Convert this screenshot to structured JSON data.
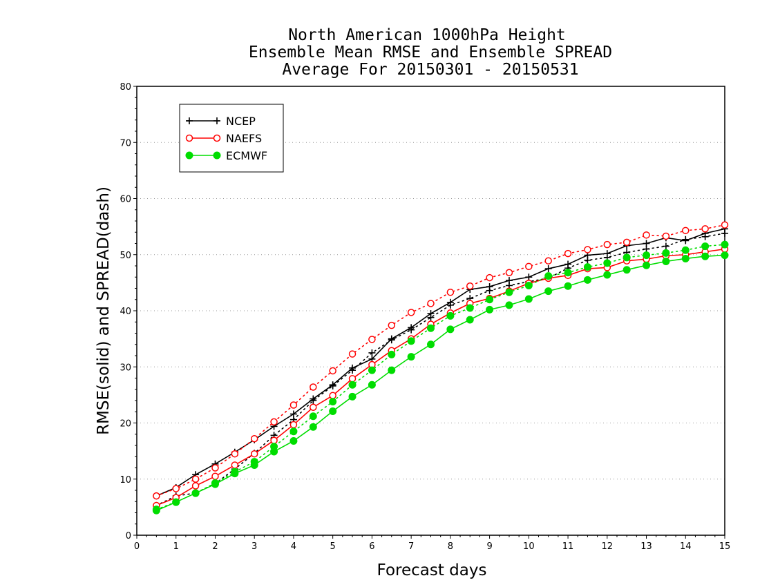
{
  "chart_data": {
    "type": "line",
    "title_lines": [
      "North American 1000hPa Height",
      "Ensemble Mean RMSE and Ensemble SPREAD",
      "Average For 20150301 - 20150531"
    ],
    "xlabel": "Forecast days",
    "ylabel": "RMSE(solid) and SPREAD(dash)",
    "xlim": [
      0,
      15
    ],
    "ylim": [
      0,
      80
    ],
    "x_ticks": [
      0,
      1,
      2,
      3,
      4,
      5,
      6,
      7,
      8,
      9,
      10,
      11,
      12,
      13,
      14,
      15
    ],
    "y_ticks": [
      0,
      10,
      20,
      30,
      40,
      50,
      60,
      70,
      80
    ],
    "grid": "horizontal dotted",
    "legend_position": "top-left",
    "x": [
      0.5,
      1,
      1.5,
      2,
      2.5,
      3,
      3.5,
      4,
      4.5,
      5,
      5.5,
      6,
      6.5,
      7,
      7.5,
      8,
      8.5,
      9,
      9.5,
      10,
      10.5,
      11,
      11.5,
      12,
      12.5,
      13,
      13.5,
      14,
      14.5,
      15
    ],
    "series": [
      {
        "name": "NCEP",
        "color": "#000000",
        "marker": "plus",
        "rmse": [
          7.0,
          8.5,
          10.8,
          12.7,
          14.8,
          17.0,
          19.4,
          21.6,
          24.3,
          26.8,
          29.8,
          31.4,
          35.0,
          37.0,
          39.5,
          41.5,
          43.8,
          44.3,
          45.4,
          46.0,
          47.5,
          48.3,
          49.9,
          50.2,
          51.6,
          52.0,
          53.0,
          52.5,
          53.8,
          54.6
        ],
        "spread": [
          5.3,
          7.0,
          7.5,
          9.2,
          11.8,
          14.6,
          17.8,
          20.6,
          24.0,
          26.6,
          29.4,
          32.5,
          34.8,
          36.6,
          38.8,
          41.0,
          42.2,
          43.6,
          44.5,
          45.2,
          45.8,
          47.6,
          49.0,
          49.5,
          50.4,
          51.0,
          51.5,
          52.7,
          53.2,
          53.8
        ]
      },
      {
        "name": "NAEFS",
        "color": "#ff0000",
        "marker": "circle-open",
        "rmse": [
          5.3,
          6.7,
          8.8,
          10.5,
          12.5,
          14.5,
          16.9,
          19.7,
          22.8,
          24.9,
          27.9,
          30.4,
          32.9,
          35.0,
          37.6,
          39.6,
          41.3,
          42.2,
          43.5,
          44.9,
          45.8,
          46.3,
          47.5,
          47.7,
          48.9,
          49.2,
          49.8,
          50.0,
          50.5,
          51.0
        ],
        "spread": [
          7.0,
          8.3,
          10.0,
          12.0,
          14.5,
          17.2,
          20.2,
          23.2,
          26.4,
          29.3,
          32.3,
          34.9,
          37.4,
          39.7,
          41.3,
          43.3,
          44.4,
          45.9,
          46.8,
          47.9,
          48.9,
          50.2,
          50.9,
          51.8,
          52.2,
          53.5,
          53.3,
          54.3,
          54.6,
          55.3
        ]
      },
      {
        "name": "ECMWF",
        "color": "#00dd00",
        "marker": "circle-filled",
        "rmse": [
          4.4,
          5.9,
          7.5,
          9.1,
          11.0,
          12.5,
          14.9,
          16.8,
          19.3,
          22.1,
          24.7,
          26.8,
          29.4,
          31.8,
          34.0,
          36.7,
          38.4,
          40.2,
          41.0,
          42.1,
          43.5,
          44.4,
          45.5,
          46.4,
          47.3,
          48.1,
          48.8,
          49.3,
          49.7,
          49.9
        ],
        "spread": [
          4.6,
          5.9,
          7.5,
          9.3,
          11.3,
          13.1,
          15.8,
          18.5,
          21.2,
          23.8,
          26.8,
          29.4,
          32.2,
          34.6,
          36.9,
          39.1,
          40.5,
          42.0,
          43.3,
          44.5,
          46.2,
          46.8,
          47.8,
          48.5,
          49.5,
          49.9,
          50.3,
          50.8,
          51.5,
          51.8
        ]
      }
    ]
  }
}
